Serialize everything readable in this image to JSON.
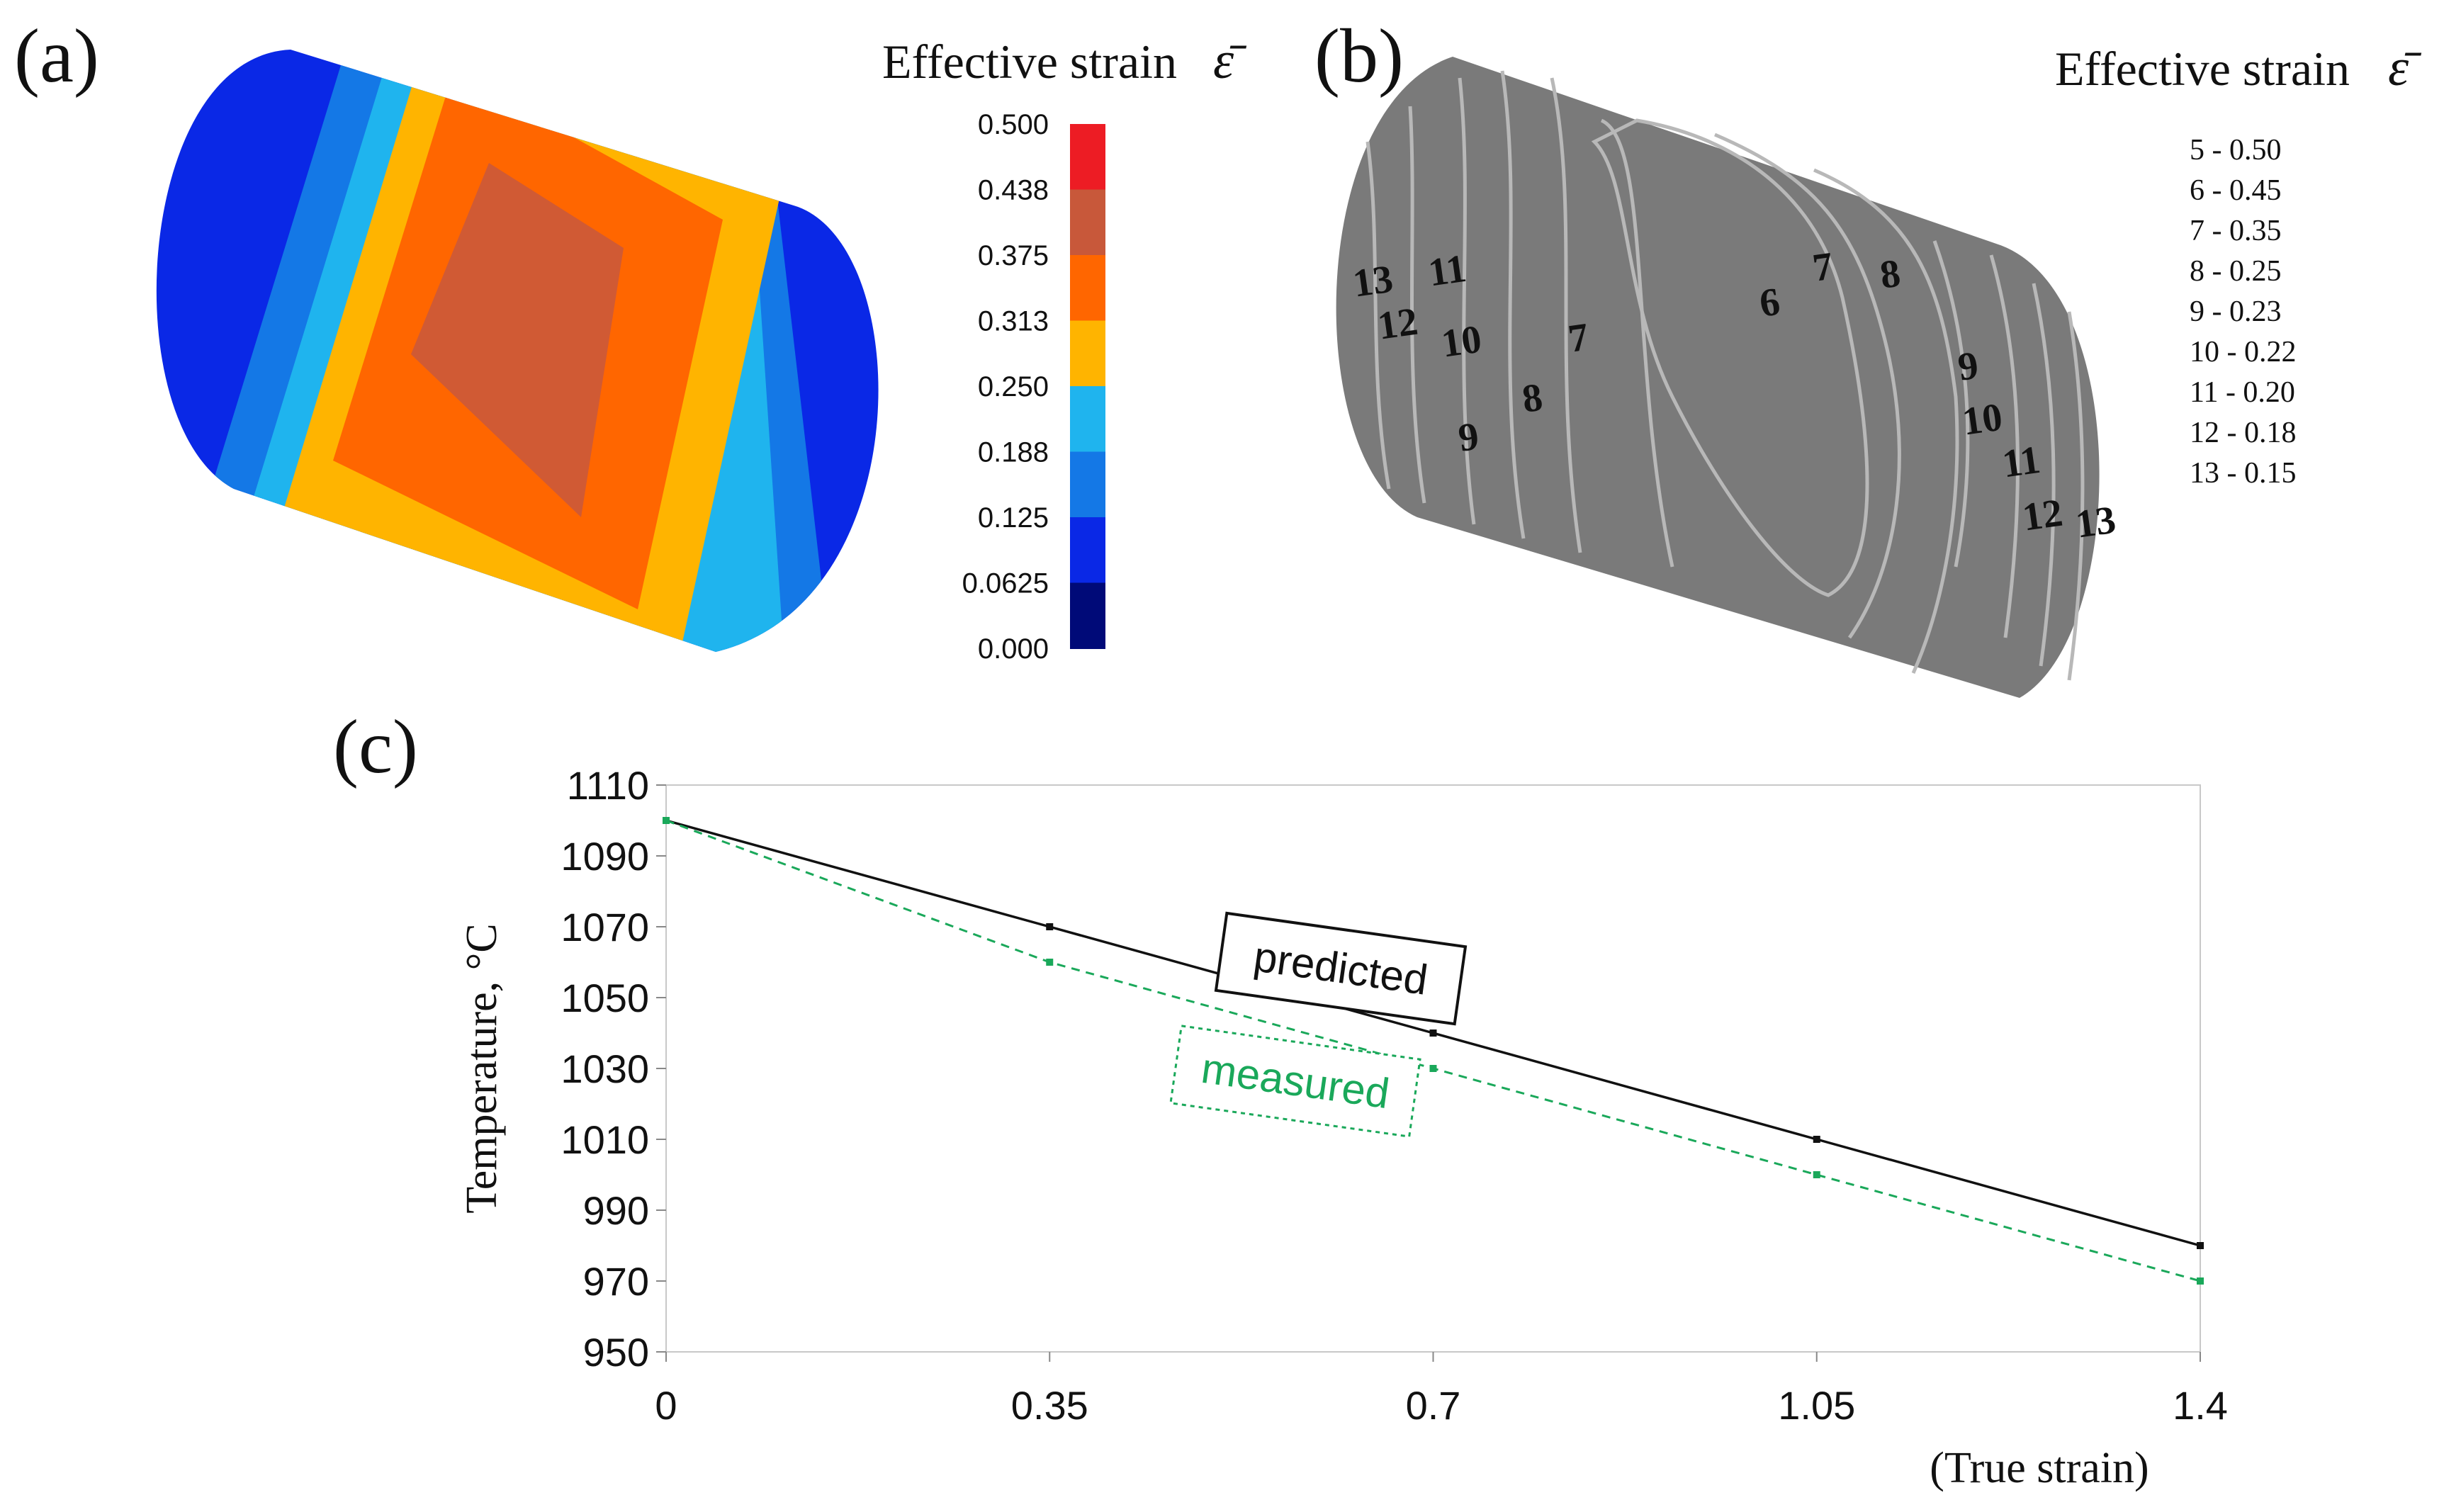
{
  "panels": {
    "a": {
      "label": "(a)",
      "legend_title": "Effective strain",
      "legend_symbol": "ε̄",
      "scale_ticks": [
        "0.500",
        "0.438",
        "0.375",
        "0.313",
        "0.250",
        "0.188",
        "0.125",
        "0.0625",
        "0.000"
      ],
      "scale_colors": [
        "#ed1c24",
        "#c8583a",
        "#ff6600",
        "#ffb400",
        "#1fb4ee",
        "#1478e6",
        "#0a28e6",
        "#000a78"
      ]
    },
    "b": {
      "label": "(b)",
      "legend_title": "Effective strain",
      "legend_symbol": "ε̄",
      "legend_items": [
        "5 - 0.50",
        "6 - 0.45",
        "7 - 0.35",
        "8 - 0.25",
        "9 - 0.23",
        "10 - 0.22",
        "11 - 0.20",
        "12 - 0.18",
        "13 - 0.15"
      ],
      "contour_labels": [
        "13",
        "11",
        "12",
        "10",
        "7",
        "9",
        "8",
        "6",
        "7",
        "8",
        "9",
        "10",
        "11",
        "12",
        "13"
      ]
    },
    "c": {
      "label": "(c)",
      "annotations": {
        "predicted": "predicted",
        "measured": "measured"
      }
    }
  },
  "colors": {
    "predicted": "#111111",
    "measured": "#1aa85a",
    "cylinder_gray": "#7a7a7a"
  },
  "chart_data": {
    "type": "line",
    "title": "",
    "xlabel": "(True strain)",
    "ylabel": "Temperature, °C",
    "x_ticks": [
      "0",
      "0.35",
      "0.7",
      "1.05",
      "1.4"
    ],
    "y_ticks": [
      "1110",
      "1090",
      "1070",
      "1050",
      "1030",
      "1010",
      "990",
      "970",
      "950"
    ],
    "xlim": [
      0,
      1.4
    ],
    "ylim": [
      950,
      1110
    ],
    "grid": false,
    "x": [
      0,
      0.35,
      0.7,
      1.05,
      1.4
    ],
    "series": [
      {
        "name": "predicted",
        "values": [
          1100,
          1070,
          1040,
          1010,
          980
        ],
        "style": "solid"
      },
      {
        "name": "measured",
        "values": [
          1100,
          1060,
          1030,
          1000,
          970
        ],
        "style": "dashed"
      }
    ]
  }
}
